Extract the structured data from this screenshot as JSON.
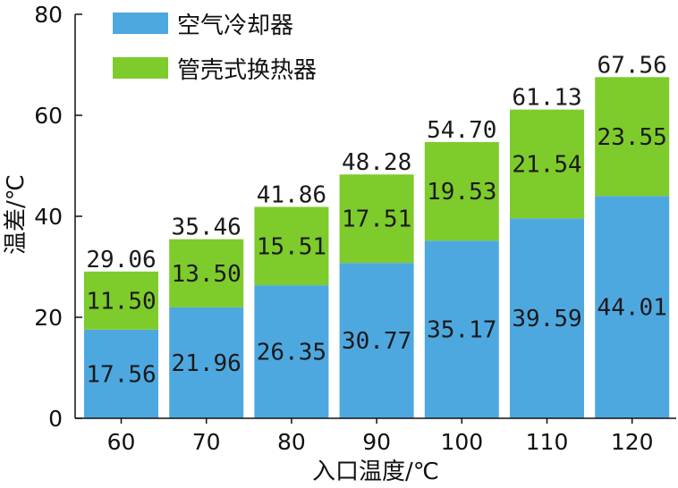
{
  "chart_data": {
    "type": "bar",
    "stacked": true,
    "categories": [
      "60",
      "70",
      "80",
      "90",
      "100",
      "110",
      "120"
    ],
    "series": [
      {
        "name": "空气冷却器",
        "color": "#4ea8e0",
        "values": [
          17.56,
          21.96,
          26.35,
          30.77,
          35.17,
          39.59,
          44.01
        ]
      },
      {
        "name": "管壳式换热器",
        "color": "#7ecb2c",
        "values": [
          11.5,
          13.5,
          15.51,
          17.51,
          19.53,
          21.54,
          23.55
        ]
      }
    ],
    "totals": [
      29.06,
      35.46,
      41.86,
      48.28,
      54.7,
      61.13,
      67.56
    ],
    "xlabel": "入口温度/℃",
    "ylabel": "温差/℃",
    "ylim": [
      0,
      80
    ],
    "yticks": [
      0,
      20,
      40,
      60,
      80
    ],
    "grid": false,
    "legend_position": "top-left"
  }
}
